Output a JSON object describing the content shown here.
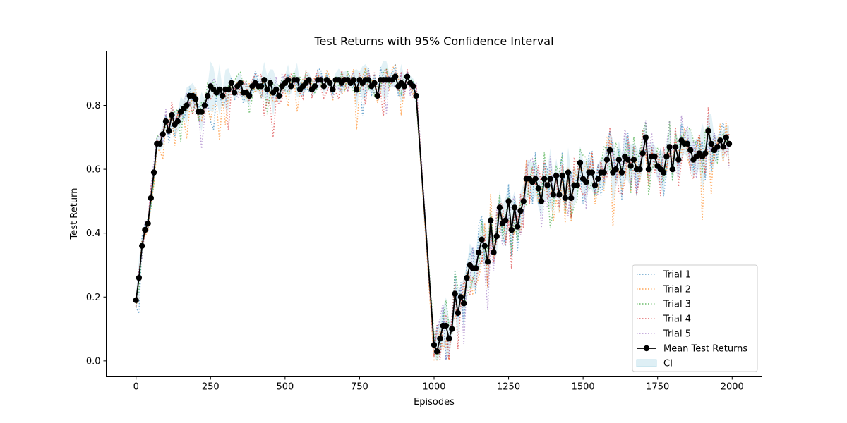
{
  "chart_data": {
    "type": "line",
    "title": "Test Returns with 95% Confidence Interval",
    "xlabel": "Episodes",
    "ylabel": "Test Return",
    "xlim": [
      -100,
      2100
    ],
    "ylim": [
      -0.05,
      0.97
    ],
    "xticks": [
      0,
      250,
      500,
      750,
      1000,
      1250,
      1500,
      1750,
      2000
    ],
    "yticks": [
      0.0,
      0.2,
      0.4,
      0.6,
      0.8
    ],
    "ytick_labels": [
      "0.0",
      "0.2",
      "0.4",
      "0.6",
      "0.8"
    ],
    "grid": false,
    "legend_position": "lower-right",
    "mean_series": {
      "name": "Mean Test Returns",
      "color": "#000000",
      "points": [
        [
          0,
          0.19
        ],
        [
          10,
          0.26
        ],
        [
          20,
          0.36
        ],
        [
          30,
          0.41
        ],
        [
          40,
          0.43
        ],
        [
          50,
          0.51
        ],
        [
          60,
          0.59
        ],
        [
          70,
          0.68
        ],
        [
          80,
          0.68
        ],
        [
          90,
          0.71
        ],
        [
          100,
          0.75
        ],
        [
          110,
          0.72
        ],
        [
          120,
          0.77
        ],
        [
          130,
          0.74
        ],
        [
          140,
          0.75
        ],
        [
          150,
          0.78
        ],
        [
          160,
          0.79
        ],
        [
          170,
          0.8
        ],
        [
          180,
          0.83
        ],
        [
          190,
          0.83
        ],
        [
          200,
          0.82
        ],
        [
          210,
          0.78
        ],
        [
          220,
          0.78
        ],
        [
          230,
          0.8
        ],
        [
          240,
          0.83
        ],
        [
          250,
          0.86
        ],
        [
          260,
          0.85
        ],
        [
          270,
          0.84
        ],
        [
          280,
          0.85
        ],
        [
          290,
          0.83
        ],
        [
          300,
          0.85
        ],
        [
          310,
          0.85
        ],
        [
          320,
          0.87
        ],
        [
          330,
          0.84
        ],
        [
          340,
          0.86
        ],
        [
          350,
          0.87
        ],
        [
          360,
          0.84
        ],
        [
          370,
          0.84
        ],
        [
          380,
          0.83
        ],
        [
          390,
          0.86
        ],
        [
          400,
          0.87
        ],
        [
          410,
          0.86
        ],
        [
          420,
          0.86
        ],
        [
          430,
          0.88
        ],
        [
          440,
          0.85
        ],
        [
          450,
          0.87
        ],
        [
          460,
          0.84
        ],
        [
          470,
          0.85
        ],
        [
          480,
          0.83
        ],
        [
          490,
          0.86
        ],
        [
          500,
          0.87
        ],
        [
          510,
          0.88
        ],
        [
          520,
          0.86
        ],
        [
          530,
          0.88
        ],
        [
          540,
          0.88
        ],
        [
          550,
          0.85
        ],
        [
          560,
          0.86
        ],
        [
          570,
          0.87
        ],
        [
          580,
          0.88
        ],
        [
          590,
          0.85
        ],
        [
          600,
          0.86
        ],
        [
          610,
          0.88
        ],
        [
          620,
          0.88
        ],
        [
          630,
          0.86
        ],
        [
          640,
          0.88
        ],
        [
          650,
          0.87
        ],
        [
          660,
          0.85
        ],
        [
          670,
          0.88
        ],
        [
          680,
          0.88
        ],
        [
          690,
          0.87
        ],
        [
          700,
          0.88
        ],
        [
          710,
          0.88
        ],
        [
          720,
          0.87
        ],
        [
          730,
          0.88
        ],
        [
          740,
          0.85
        ],
        [
          750,
          0.88
        ],
        [
          760,
          0.87
        ],
        [
          770,
          0.88
        ],
        [
          780,
          0.88
        ],
        [
          790,
          0.86
        ],
        [
          800,
          0.87
        ],
        [
          810,
          0.83
        ],
        [
          820,
          0.88
        ],
        [
          830,
          0.88
        ],
        [
          840,
          0.88
        ],
        [
          850,
          0.88
        ],
        [
          860,
          0.88
        ],
        [
          870,
          0.89
        ],
        [
          880,
          0.86
        ],
        [
          890,
          0.87
        ],
        [
          900,
          0.86
        ],
        [
          910,
          0.89
        ],
        [
          920,
          0.87
        ],
        [
          930,
          0.86
        ],
        [
          940,
          0.83
        ],
        [
          1000,
          0.05
        ],
        [
          1010,
          0.03
        ],
        [
          1020,
          0.07
        ],
        [
          1030,
          0.11
        ],
        [
          1040,
          0.11
        ],
        [
          1050,
          0.07
        ],
        [
          1060,
          0.1
        ],
        [
          1070,
          0.21
        ],
        [
          1080,
          0.15
        ],
        [
          1090,
          0.2
        ],
        [
          1100,
          0.18
        ],
        [
          1110,
          0.26
        ],
        [
          1120,
          0.3
        ],
        [
          1130,
          0.29
        ],
        [
          1140,
          0.29
        ],
        [
          1150,
          0.34
        ],
        [
          1160,
          0.38
        ],
        [
          1170,
          0.36
        ],
        [
          1180,
          0.31
        ],
        [
          1190,
          0.44
        ],
        [
          1200,
          0.34
        ],
        [
          1210,
          0.39
        ],
        [
          1220,
          0.48
        ],
        [
          1230,
          0.43
        ],
        [
          1240,
          0.44
        ],
        [
          1250,
          0.5
        ],
        [
          1260,
          0.41
        ],
        [
          1270,
          0.48
        ],
        [
          1280,
          0.42
        ],
        [
          1290,
          0.47
        ],
        [
          1300,
          0.5
        ],
        [
          1310,
          0.57
        ],
        [
          1320,
          0.57
        ],
        [
          1330,
          0.56
        ],
        [
          1340,
          0.57
        ],
        [
          1350,
          0.54
        ],
        [
          1360,
          0.5
        ],
        [
          1370,
          0.57
        ],
        [
          1380,
          0.55
        ],
        [
          1390,
          0.57
        ],
        [
          1400,
          0.52
        ],
        [
          1410,
          0.58
        ],
        [
          1420,
          0.52
        ],
        [
          1430,
          0.58
        ],
        [
          1440,
          0.51
        ],
        [
          1450,
          0.59
        ],
        [
          1460,
          0.51
        ],
        [
          1470,
          0.55
        ],
        [
          1480,
          0.55
        ],
        [
          1490,
          0.62
        ],
        [
          1500,
          0.57
        ],
        [
          1510,
          0.56
        ],
        [
          1520,
          0.59
        ],
        [
          1530,
          0.59
        ],
        [
          1540,
          0.55
        ],
        [
          1550,
          0.57
        ],
        [
          1560,
          0.59
        ],
        [
          1570,
          0.59
        ],
        [
          1580,
          0.63
        ],
        [
          1590,
          0.66
        ],
        [
          1600,
          0.59
        ],
        [
          1610,
          0.6
        ],
        [
          1620,
          0.63
        ],
        [
          1630,
          0.59
        ],
        [
          1640,
          0.64
        ],
        [
          1650,
          0.63
        ],
        [
          1660,
          0.61
        ],
        [
          1670,
          0.63
        ],
        [
          1680,
          0.6
        ],
        [
          1690,
          0.6
        ],
        [
          1700,
          0.65
        ],
        [
          1710,
          0.7
        ],
        [
          1720,
          0.6
        ],
        [
          1730,
          0.64
        ],
        [
          1740,
          0.64
        ],
        [
          1750,
          0.61
        ],
        [
          1760,
          0.6
        ],
        [
          1770,
          0.59
        ],
        [
          1780,
          0.64
        ],
        [
          1790,
          0.67
        ],
        [
          1800,
          0.6
        ],
        [
          1810,
          0.67
        ],
        [
          1820,
          0.63
        ],
        [
          1830,
          0.69
        ],
        [
          1840,
          0.68
        ],
        [
          1850,
          0.68
        ],
        [
          1860,
          0.66
        ],
        [
          1870,
          0.63
        ],
        [
          1880,
          0.64
        ],
        [
          1890,
          0.65
        ],
        [
          1900,
          0.64
        ],
        [
          1910,
          0.65
        ],
        [
          1920,
          0.72
        ],
        [
          1930,
          0.68
        ],
        [
          1940,
          0.66
        ],
        [
          1950,
          0.67
        ],
        [
          1960,
          0.69
        ],
        [
          1970,
          0.67
        ],
        [
          1980,
          0.7
        ],
        [
          1990,
          0.68
        ]
      ]
    },
    "trials": [
      {
        "name": "Trial 1",
        "color": "#1f77b4",
        "seed": 11
      },
      {
        "name": "Trial 2",
        "color": "#ff7f0e",
        "seed": 23
      },
      {
        "name": "Trial 3",
        "color": "#2ca02c",
        "seed": 37
      },
      {
        "name": "Trial 4",
        "color": "#d62728",
        "seed": 51
      },
      {
        "name": "Trial 5",
        "color": "#9467bd",
        "seed": 73
      }
    ],
    "ci": {
      "name": "CI",
      "color": "#add8e6"
    }
  }
}
